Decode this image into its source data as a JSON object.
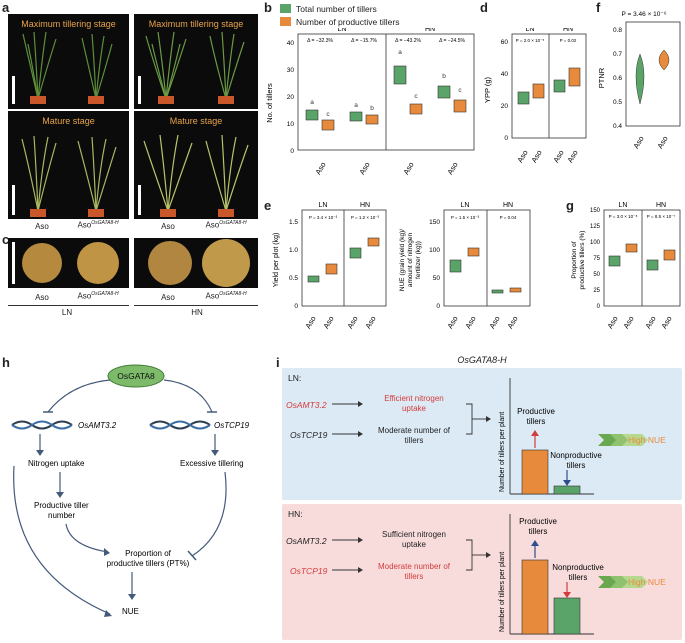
{
  "panels": {
    "a": "a",
    "b": "b",
    "c": "c",
    "d": "d",
    "e": "e",
    "f": "f",
    "g": "g",
    "h": "h",
    "i": "i"
  },
  "photos": {
    "max_tillering": "Maximum tillering stage",
    "mature": "Mature stage"
  },
  "labels": {
    "aso": "Aso",
    "aso_gata": "Aso",
    "gata_sup": "OsGATA8-H",
    "ln": "LN",
    "hn": "HN"
  },
  "legend": {
    "total": "Total number of tillers",
    "productive": "Number of productive tillers",
    "total_color": "#5aa469",
    "productive_color": "#e88a3c"
  },
  "panel_b": {
    "ylabel": "No. of tillers",
    "yticks": [
      "0",
      "10",
      "20",
      "30",
      "40"
    ],
    "delta_ln_1": "Δ = −32.3%",
    "delta_ln_2": "Δ = −15.7%",
    "delta_hn_1": "Δ = −43.2%",
    "delta_hn_2": "Δ = −24.5%",
    "letters": [
      "a",
      "c",
      "a",
      "b",
      "a",
      "c",
      "b",
      "c"
    ]
  },
  "panel_d": {
    "ylabel": "YPP (g)",
    "yticks": [
      "0",
      "20",
      "40",
      "60"
    ],
    "p_ln": "P = 2.0 × 10⁻⁵",
    "p_hn": "P = 0.02"
  },
  "panel_f": {
    "ylabel": "PTNR",
    "yticks": [
      "0.4",
      "0.5",
      "0.6",
      "0.7",
      "0.8"
    ],
    "p": "P = 3.46 × 10⁻⁶"
  },
  "panel_e": {
    "ylabel1": "Yield per plot (kg)",
    "yticks1": [
      "0",
      "0.5",
      "1.0",
      "1.5"
    ],
    "p_ln1": "P = 3.4 × 10⁻³",
    "p_hn1": "P = 1.2 × 10⁻³",
    "ylabel2a": "NUE (grain yield (kg)/",
    "ylabel2b": "amount of nitrogen",
    "ylabel2c": "fertilizer (kg))",
    "yticks2": [
      "0",
      "50",
      "100",
      "150"
    ],
    "p_ln2": "P = 1.5 × 10⁻³",
    "p_hn2": "P = 0.04"
  },
  "panel_g": {
    "ylabel1": "Proportion of",
    "ylabel2": "productive tillers (%)",
    "yticks": [
      "0",
      "25",
      "50",
      "75",
      "100",
      "125",
      "150"
    ],
    "p_ln": "P = 3.0 × 10⁻⁸",
    "p_hn": "P = 8.5 × 10⁻⁷"
  },
  "panel_h": {
    "osgata8": "OsGATA8",
    "osamt": "OsAMT3.2",
    "ostcp": "OsTCP19",
    "n_uptake": "Nitrogen uptake",
    "excess": "Excessive tillering",
    "ptn1": "Productive tiller",
    "ptn2": "number",
    "ppt1": "Proportion of",
    "ppt2": "productive tillers (PT%)",
    "nue": "NUE"
  },
  "panel_i": {
    "title": "OsGATA8-H",
    "ln_tag": "LN:",
    "hn_tag": "HN:",
    "ln_amt": "OsAMT3.2",
    "ln_tcp": "OsTCP19",
    "ln_eff1": "Efficient nitrogen",
    "ln_eff2": "uptake",
    "ln_mod1": "Moderate number of",
    "ln_mod2": "tillers",
    "hn_amt": "OsAMT3.2",
    "hn_tcp": "OsTCP19",
    "hn_suf1": "Sufficient nitrogen",
    "hn_suf2": "uptake",
    "hn_mod1": "Moderate number of",
    "hn_mod2": "tillers",
    "yaxis1": "Number of tillers per plant",
    "productive1": "Productive",
    "productive2": "tillers",
    "nonprod1": "Nonproductive",
    "nonprod2": "tillers",
    "high_nue": "High NUE",
    "ln_bg": "#dceaf5",
    "hn_bg": "#f8dcdc"
  }
}
